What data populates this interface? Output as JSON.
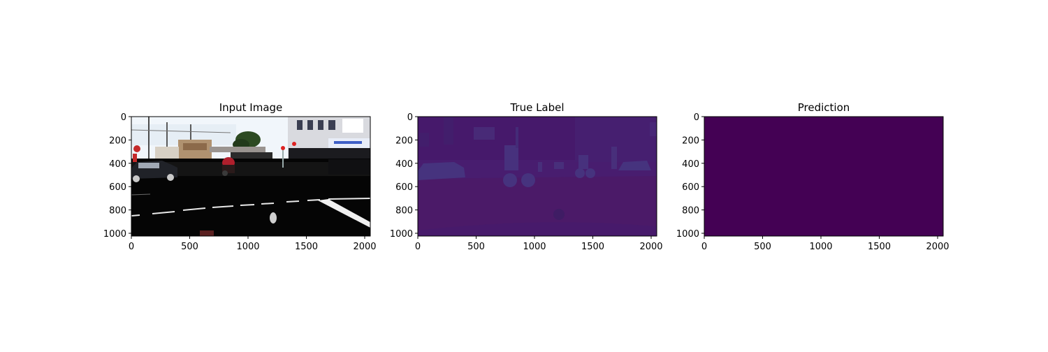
{
  "figure": {
    "panels": [
      {
        "id": "input",
        "title": "Input Image",
        "content": "photo"
      },
      {
        "id": "true",
        "title": "True Label",
        "content": "label-map"
      },
      {
        "id": "pred",
        "title": "Prediction",
        "content": "uniform"
      }
    ]
  },
  "chart_data": [
    {
      "type": "heatmap",
      "title": "Input Image",
      "xlim": [
        0,
        2048
      ],
      "ylim": [
        1024,
        0
      ],
      "xticks": [
        0,
        500,
        1000,
        1500,
        2000
      ],
      "yticks": [
        0,
        200,
        400,
        600,
        800,
        1000
      ],
      "xtick_labels": [
        "0",
        "500",
        "1000",
        "1500",
        "2000"
      ],
      "ytick_labels": [
        "0",
        "200",
        "400",
        "600",
        "800",
        "1000"
      ],
      "grid": false
    },
    {
      "type": "heatmap",
      "title": "True Label",
      "xlim": [
        0,
        2048
      ],
      "ylim": [
        1024,
        0
      ],
      "xticks": [
        0,
        500,
        1000,
        1500,
        2000
      ],
      "yticks": [
        0,
        200,
        400,
        600,
        800,
        1000
      ],
      "xtick_labels": [
        "0",
        "500",
        "1000",
        "1500",
        "2000"
      ],
      "ytick_labels": [
        "0",
        "200",
        "400",
        "600",
        "800",
        "1000"
      ],
      "colormap": "viridis",
      "grid": false
    },
    {
      "type": "heatmap",
      "title": "Prediction",
      "xlim": [
        0,
        2048
      ],
      "ylim": [
        1024,
        0
      ],
      "xticks": [
        0,
        500,
        1000,
        1500,
        2000
      ],
      "yticks": [
        0,
        200,
        400,
        600,
        800,
        1000
      ],
      "xtick_labels": [
        "0",
        "500",
        "1000",
        "1500",
        "2000"
      ],
      "ytick_labels": [
        "0",
        "200",
        "400",
        "600",
        "800",
        "1000"
      ],
      "colormap": "viridis",
      "fill_color": "#440154",
      "grid": false
    }
  ],
  "colors": {
    "viridis_dark": "#440154",
    "label_bg": "#481d6f",
    "label_sky": "#45196b",
    "label_object": "#46337e",
    "label_road": "#4b1668"
  }
}
